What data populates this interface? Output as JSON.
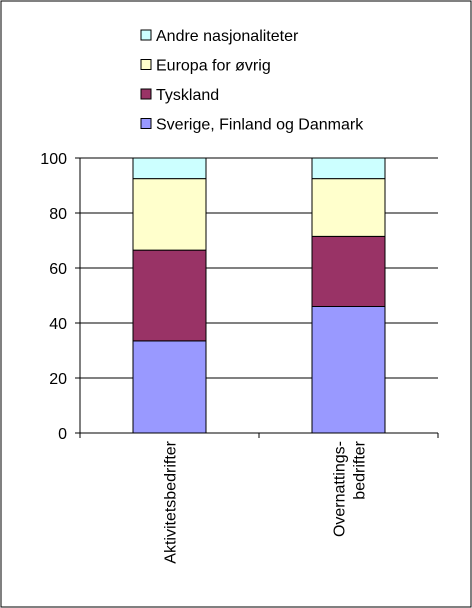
{
  "chart_data": {
    "type": "stacked_bar",
    "categories": [
      "Aktivitetsbedrifter",
      "Overnattings-\nbedrifter"
    ],
    "series": [
      {
        "name": "Sverige, Finland og Danmark",
        "color": "#9999ff",
        "values": [
          33.5,
          46
        ]
      },
      {
        "name": "Tyskland",
        "color": "#993366",
        "values": [
          33,
          25.5
        ]
      },
      {
        "name": "Europa for øvrig",
        "color": "#ffffcc",
        "values": [
          26,
          21
        ]
      },
      {
        "name": "Andre nasjonaliteter",
        "color": "#ccffff",
        "values": [
          7.5,
          7.5
        ]
      }
    ],
    "ylim": [
      0,
      100
    ],
    "yticks": [
      0,
      20,
      40,
      60,
      80,
      100
    ],
    "grid": true,
    "legend": "top"
  }
}
